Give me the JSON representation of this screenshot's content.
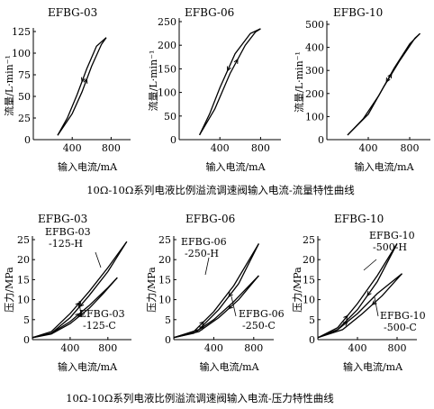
{
  "captions": {
    "flow": "10Ω-10Ω系列电液比例溢流调速阀输入电流-流量特性曲线",
    "pressure": "10Ω-10Ω系列电液比例溢流调速阀输入电流-压力特性曲线"
  },
  "chart_data": [
    {
      "type": "line",
      "title": "EFBG-03",
      "xlabel": "输入电流/mA",
      "ylabel": "流量/L·min⁻¹",
      "xlim": [
        0,
        1000
      ],
      "ylim": [
        0,
        125
      ],
      "xticks": [
        400,
        800
      ],
      "yticks": [
        0,
        25,
        50,
        75,
        100,
        125
      ],
      "series": [
        {
          "x": [
            250,
            400,
            500,
            600,
            700,
            750
          ],
          "y": [
            5,
            30,
            55,
            85,
            110,
            118
          ]
        },
        {
          "x": [
            750,
            650,
            550,
            450,
            350,
            250
          ],
          "y": [
            118,
            108,
            82,
            52,
            25,
            5
          ]
        }
      ],
      "annotations": []
    },
    {
      "type": "line",
      "title": "EFBG-06",
      "xlabel": "输入电流/mA",
      "ylabel": "流量/L·min⁻¹",
      "xlim": [
        0,
        1000
      ],
      "ylim": [
        0,
        250
      ],
      "xticks": [
        400,
        800
      ],
      "yticks": [
        0,
        50,
        100,
        150,
        200,
        250
      ],
      "series": [
        {
          "x": [
            200,
            350,
            500,
            650,
            750,
            800
          ],
          "y": [
            10,
            65,
            140,
            200,
            228,
            235
          ]
        },
        {
          "x": [
            800,
            700,
            550,
            400,
            300,
            200
          ],
          "y": [
            235,
            225,
            182,
            110,
            55,
            10
          ]
        }
      ],
      "annotations": []
    },
    {
      "type": "line",
      "title": "EFBG-10",
      "xlabel": "输入电流/mA",
      "ylabel": "流量/L·min⁻¹",
      "xlim": [
        0,
        1000
      ],
      "ylim": [
        0,
        500
      ],
      "xticks": [
        400,
        800
      ],
      "yticks": [
        0,
        100,
        200,
        300,
        400,
        500
      ],
      "series": [
        {
          "x": [
            200,
            400,
            550,
            700,
            850,
            900
          ],
          "y": [
            20,
            110,
            230,
            340,
            440,
            460
          ]
        },
        {
          "x": [
            900,
            800,
            650,
            500,
            350,
            200
          ],
          "y": [
            460,
            415,
            310,
            190,
            90,
            20
          ]
        }
      ],
      "annotations": []
    },
    {
      "type": "line",
      "title": "EFBG-03",
      "xlabel": "输入电流/mA",
      "ylabel": "压力/MPa",
      "xlim": [
        0,
        1050
      ],
      "ylim": [
        0,
        25
      ],
      "xticks": [
        400,
        800
      ],
      "yticks": [
        0,
        5,
        10,
        15,
        20,
        25
      ],
      "series": [
        {
          "name": "EFBG-03 -125-H",
          "x": [
            0,
            200,
            400,
            600,
            800,
            1000
          ],
          "y": [
            0.5,
            2,
            6.5,
            12,
            18,
            24.5
          ]
        },
        {
          "name": "EFBG-03 -125-H",
          "x": [
            1000,
            800,
            600,
            400,
            200,
            0
          ],
          "y": [
            24.5,
            17,
            11,
            5.5,
            1.6,
            0.5
          ]
        },
        {
          "name": "EFBG-03 -125-C",
          "x": [
            0,
            200,
            400,
            600,
            800,
            900
          ],
          "y": [
            0.5,
            1.6,
            4.5,
            8.5,
            13,
            15.5
          ]
        },
        {
          "name": "EFBG-03 -125-C",
          "x": [
            900,
            750,
            600,
            400,
            200,
            0
          ],
          "y": [
            15.5,
            11.5,
            7.8,
            4.0,
            1.4,
            0.5
          ]
        }
      ],
      "annotations": [
        {
          "lines": [
            "EFBG-03",
            "-125-H"
          ]
        },
        {
          "lines": [
            "EFBG-03",
            "-125-C"
          ]
        }
      ]
    },
    {
      "type": "line",
      "title": "EFBG-06",
      "xlabel": "输入电流/mA",
      "ylabel": "压力/MPa",
      "xlim": [
        0,
        1000
      ],
      "ylim": [
        0,
        25
      ],
      "xticks": [
        400,
        800
      ],
      "yticks": [
        0,
        5,
        10,
        15,
        20,
        25
      ],
      "series": [
        {
          "name": "EFBG-06 -250-H",
          "x": [
            0,
            200,
            400,
            600,
            850
          ],
          "y": [
            0.5,
            2,
            7,
            13.5,
            24
          ]
        },
        {
          "name": "EFBG-06 -250-H",
          "x": [
            850,
            650,
            450,
            250,
            0
          ],
          "y": [
            24,
            14,
            7.5,
            2.5,
            0.5
          ]
        },
        {
          "name": "EFBG-06 -250-C",
          "x": [
            0,
            200,
            400,
            600,
            850
          ],
          "y": [
            0.5,
            1.6,
            5,
            9.5,
            16
          ]
        },
        {
          "name": "EFBG-06 -250-C",
          "x": [
            850,
            650,
            450,
            250,
            0
          ],
          "y": [
            16,
            10,
            5.5,
            2.0,
            0.5
          ]
        }
      ],
      "annotations": [
        {
          "lines": [
            "EFBG-06",
            "-250-H"
          ]
        },
        {
          "lines": [
            "EFBG-06",
            "-250-C"
          ]
        }
      ]
    },
    {
      "type": "line",
      "title": "EFBG-10",
      "xlabel": "输入电流/mA",
      "ylabel": "压力/MPa",
      "xlim": [
        0,
        1000
      ],
      "ylim": [
        0,
        25
      ],
      "xticks": [
        400,
        800
      ],
      "yticks": [
        0,
        5,
        10,
        15,
        20,
        25
      ],
      "series": [
        {
          "name": "EFBG-10 -500-H",
          "x": [
            0,
            200,
            400,
            600,
            800
          ],
          "y": [
            0.5,
            3,
            9,
            16,
            24
          ]
        },
        {
          "name": "EFBG-10 -500-H",
          "x": [
            800,
            600,
            400,
            200,
            0
          ],
          "y": [
            24,
            14.5,
            7.5,
            2.5,
            0.5
          ]
        },
        {
          "name": "EFBG-10 -500-C",
          "x": [
            0,
            200,
            400,
            600,
            850
          ],
          "y": [
            0.5,
            2.5,
            6.5,
            11.5,
            16.5
          ]
        },
        {
          "name": "EFBG-10 -500-C",
          "x": [
            850,
            650,
            450,
            250,
            0
          ],
          "y": [
            16.5,
            11,
            6.5,
            2.5,
            0.5
          ]
        }
      ],
      "annotations": [
        {
          "lines": [
            "EFBG-10",
            "-500-H"
          ]
        },
        {
          "lines": [
            "EFBG-10",
            "-500-C"
          ]
        }
      ]
    }
  ]
}
